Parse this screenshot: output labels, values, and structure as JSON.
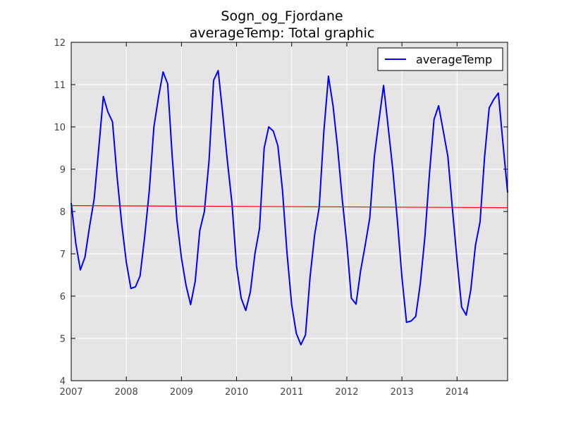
{
  "chart_data": {
    "type": "line",
    "title": "Sogn_og_Fjordane",
    "subtitle": "averageTemp: Total graphic",
    "xlabel": "",
    "ylabel": "",
    "xlim": [
      2007.0,
      2014.917
    ],
    "ylim": [
      4,
      12
    ],
    "x_ticks": [
      "2007",
      "2008",
      "2009",
      "2010",
      "2011",
      "2012",
      "2013",
      "2014"
    ],
    "y_ticks": [
      "4",
      "5",
      "6",
      "7",
      "8",
      "9",
      "10",
      "11",
      "12"
    ],
    "grid": true,
    "legend": "top-right",
    "colors": {
      "series": "#0000ff",
      "trend": "#ff0000",
      "plot_bg": "#e5e5e5",
      "grid": "#ffffff"
    },
    "series": [
      {
        "name": "averageTemp",
        "start": "2007-01",
        "interval": "month",
        "values": [
          8.2,
          7.25,
          6.62,
          6.92,
          7.65,
          8.3,
          9.5,
          10.72,
          10.35,
          10.12,
          8.8,
          7.7,
          6.8,
          6.18,
          6.22,
          6.48,
          7.4,
          8.5,
          10.0,
          10.7,
          11.3,
          11.02,
          9.3,
          7.8,
          6.9,
          6.25,
          5.8,
          6.35,
          7.55,
          8.0,
          9.2,
          11.1,
          11.33,
          10.3,
          9.2,
          8.2,
          6.7,
          5.95,
          5.66,
          6.1,
          7.0,
          7.6,
          9.5,
          10.0,
          9.9,
          9.55,
          8.5,
          7.0,
          5.8,
          5.12,
          4.85,
          5.08,
          6.45,
          7.45,
          8.1,
          9.9,
          11.2,
          10.5,
          9.5,
          8.3,
          7.25,
          5.95,
          5.81,
          6.6,
          7.2,
          7.85,
          9.3,
          10.15,
          10.98,
          10.0,
          9.0,
          7.8,
          6.45,
          5.38,
          5.41,
          5.52,
          6.3,
          7.4,
          8.9,
          10.18,
          10.5,
          9.9,
          9.3,
          8.05,
          6.85,
          5.74,
          5.55,
          6.15,
          7.2,
          7.75,
          9.3,
          10.45,
          10.65,
          10.8,
          9.6,
          8.45
        ]
      },
      {
        "name": "trend",
        "type": "line",
        "x": [
          2007.0,
          2014.917
        ],
        "values": [
          8.14,
          8.09
        ]
      }
    ]
  }
}
